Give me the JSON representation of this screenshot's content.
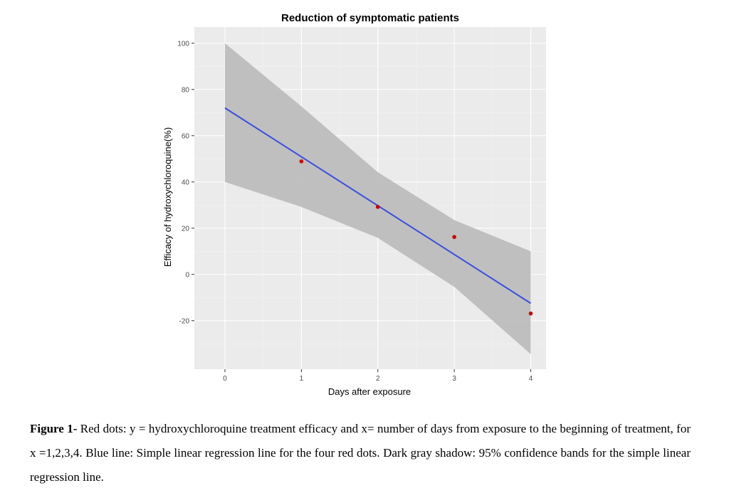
{
  "chart_data": {
    "type": "scatter",
    "title": "Reduction of symptomatic patients",
    "xlabel": "Days after exposure",
    "ylabel": "Efficacy of hydroxychloroquine(%)",
    "xlim": [
      -0.4,
      4.2
    ],
    "ylim": [
      -41,
      107
    ],
    "x_ticks": [
      0,
      1,
      2,
      3,
      4
    ],
    "x_tick_labels": [
      "0",
      "1",
      "2",
      "3",
      "4"
    ],
    "y_ticks": [
      -20,
      0,
      20,
      40,
      60,
      80,
      100
    ],
    "y_tick_labels": [
      "-20",
      "0",
      "20",
      "40",
      "60",
      "80",
      "100"
    ],
    "grid": true,
    "background": "#ebebeb",
    "series": [
      {
        "kind": "points",
        "color": "#cc0000",
        "x": [
          1,
          2,
          3,
          4
        ],
        "y": [
          48.9,
          29.2,
          16.2,
          -16.9
        ]
      },
      {
        "kind": "regression-line",
        "color": "#3b4fe0",
        "x": [
          0,
          4
        ],
        "y": [
          72.0,
          -12.5
        ]
      },
      {
        "kind": "confidence-band",
        "color": "#bdbdbd",
        "x": [
          0,
          1,
          2,
          3,
          4
        ],
        "upper": [
          100,
          72.7,
          44.2,
          23.5,
          10
        ],
        "lower": [
          40,
          29.2,
          15.8,
          -5.4,
          -34.5
        ]
      }
    ]
  },
  "caption": {
    "lead": "Figure 1-",
    "text": " Red dots: y = hydroxychloroquine treatment efficacy and x= number of days from exposure to the beginning of treatment, for x =1,2,3,4. Blue line: Simple linear regression line for the four red dots. Dark gray shadow: 95% confidence bands for the simple linear regression line."
  }
}
